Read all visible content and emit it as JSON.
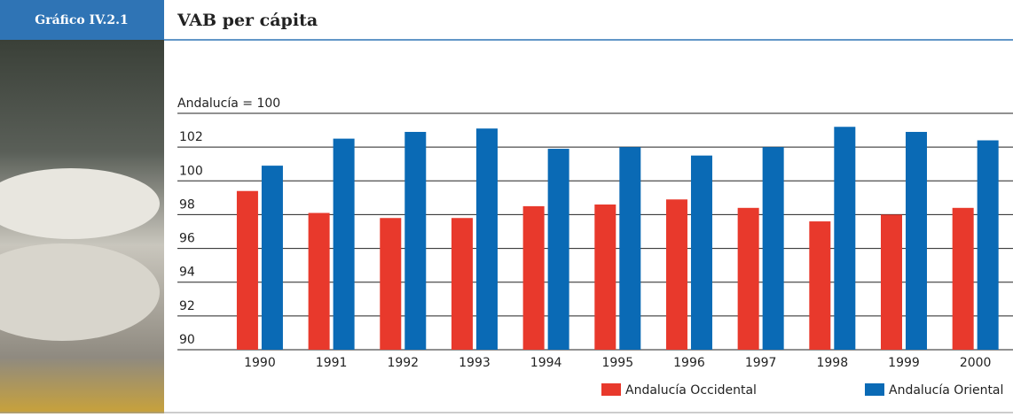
{
  "header": {
    "tag": "Gráfico IV.2.1",
    "title": "VAB per cápita"
  },
  "chart_data": {
    "type": "bar",
    "ylabel": "Andalucía = 100",
    "categories": [
      "1990",
      "1991",
      "1992",
      "1993",
      "1994",
      "1995",
      "1996",
      "1997",
      "1998",
      "1999",
      "2000"
    ],
    "series": [
      {
        "name": "Andalucía Occidental",
        "color": "#e8392c",
        "values": [
          99.4,
          98.1,
          97.8,
          97.8,
          98.5,
          98.6,
          98.9,
          98.4,
          97.6,
          98.0,
          98.4
        ]
      },
      {
        "name": "Andalucía Oriental",
        "color": "#0a6ab5",
        "values": [
          100.9,
          102.5,
          102.9,
          103.1,
          101.9,
          102.0,
          101.5,
          102.0,
          103.2,
          102.9,
          102.4
        ]
      }
    ],
    "ylim": [
      90,
      104
    ],
    "yticks": [
      90,
      92,
      94,
      96,
      98,
      100,
      102
    ],
    "grid": true
  }
}
